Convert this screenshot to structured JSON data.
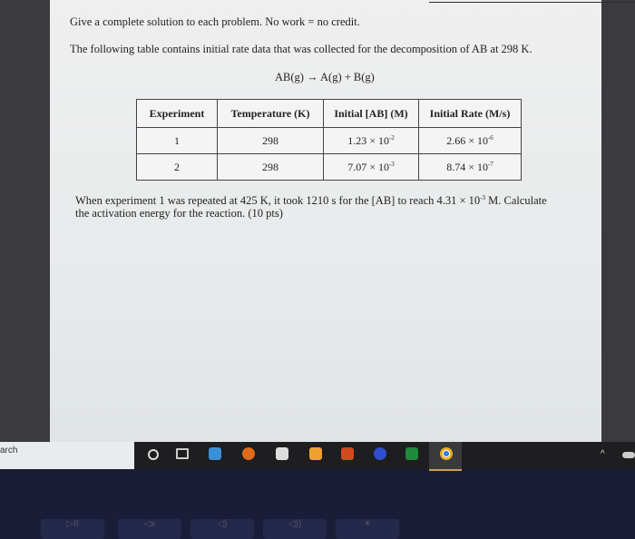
{
  "document": {
    "instructions": "Give a complete solution to each problem.  No work = no credit.",
    "intro": "The following table contains initial rate data that was collected for the decomposition of AB at 298 K.",
    "reaction": "AB(g) → A(g) + B(g)",
    "table": {
      "headers": [
        "Experiment",
        "Temperature (K)",
        "Initial [AB] (M)",
        "Initial Rate (M/s)"
      ],
      "rows": [
        {
          "exp": "1",
          "temp": "298",
          "conc_base": "1.23 × 10",
          "conc_exp": "-2",
          "rate_base": "2.66 × 10",
          "rate_exp": "-6"
        },
        {
          "exp": "2",
          "temp": "298",
          "conc_base": "7.07 × 10",
          "conc_exp": "-3",
          "rate_base": "8.74 × 10",
          "rate_exp": "-7"
        }
      ]
    },
    "question_part1": "When experiment 1 was repeated at 425 K, it took 1210 s for the [AB] to reach 4.31 × 10",
    "question_exp": "-3",
    "question_part2": " M.  Calculate",
    "question_line2": "the activation energy for the reaction. (10 pts)"
  },
  "taskbar": {
    "search_text": "arch",
    "icons": [
      "cortana-icon",
      "task-view-icon",
      "file-explorer-icon",
      "edge-icon",
      "store-icon",
      "mail-icon",
      "office-icon",
      "publisher-icon",
      "excel-icon",
      "chrome-icon"
    ],
    "active": "chrome-icon"
  },
  "keyboard": {
    "keys": [
      "▷II",
      "◁x",
      "◁)",
      "◁))",
      "☀"
    ]
  }
}
